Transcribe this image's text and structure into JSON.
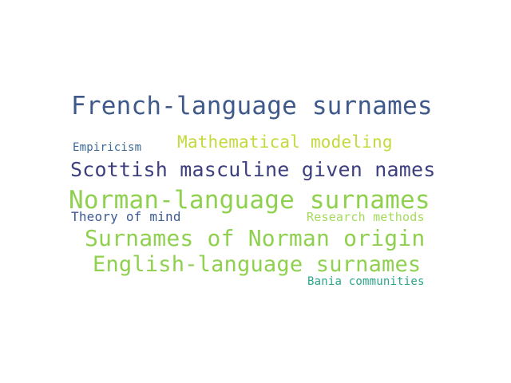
{
  "word_cloud": {
    "words": [
      {
        "text": "French-language surnames",
        "color": "#3f5a8a"
      },
      {
        "text": "Mathematical modeling",
        "color": "#c5d93b"
      },
      {
        "text": "Empiricism",
        "color": "#3b6b9a"
      },
      {
        "text": "Scottish masculine given names",
        "color": "#3d3f7f"
      },
      {
        "text": "Norman-language surnames",
        "color": "#8fd14f"
      },
      {
        "text": "Theory of mind",
        "color": "#3c5a96"
      },
      {
        "text": "Research methods",
        "color": "#a4db5a"
      },
      {
        "text": "Surnames of Norman origin",
        "color": "#8fd14f"
      },
      {
        "text": "English-language surnames",
        "color": "#8fd14f"
      },
      {
        "text": "Bania communities",
        "color": "#2aa58a"
      }
    ]
  }
}
